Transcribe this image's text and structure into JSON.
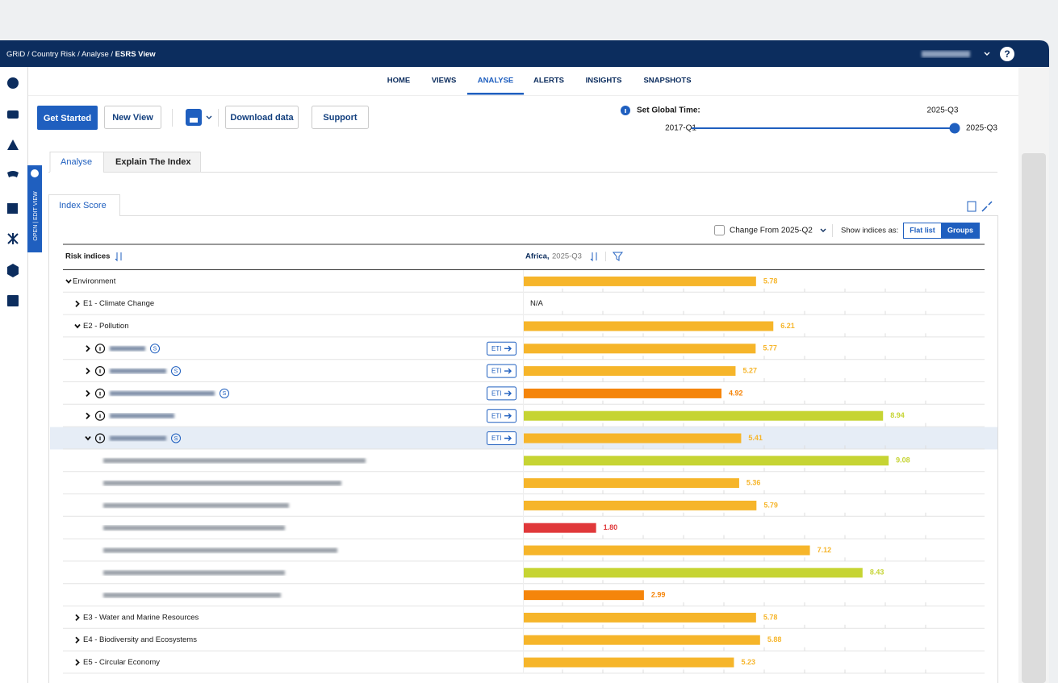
{
  "header": {
    "breadcrumb": [
      "GRiD",
      "Country Risk",
      "Analyse"
    ],
    "separator": "/",
    "current": "ESRS View",
    "help": "?"
  },
  "nav": [
    "HOME",
    "VIEWS",
    "ANALYSE",
    "ALERTS",
    "INSIGHTS",
    "SNAPSHOTS"
  ],
  "nav_active": 2,
  "toolbar": {
    "get_started": "Get Started",
    "new_view": "New View",
    "download": "Download data",
    "support": "Support"
  },
  "time": {
    "label": "Set Global Time:",
    "selected": "2025-Q3",
    "start": "2017-Q1",
    "end": "2025-Q3"
  },
  "tabs": [
    "Analyse",
    "Explain The Index"
  ],
  "side_tab": "OPEN | EDIT VIEW",
  "panel": {
    "tab": "Index Score",
    "change_label": "Change From 2025-Q2",
    "show_as_label": "Show indices as:",
    "toggle": [
      "Flat list",
      "Groups"
    ]
  },
  "table": {
    "header": {
      "name": "Risk indices",
      "region": "Africa,",
      "period": "2025-Q3"
    },
    "rows": [
      {
        "level": 0,
        "expand": "down",
        "label": "Environment",
        "score": 5.78,
        "color": "#f6b52a"
      },
      {
        "level": 1,
        "expand": "right",
        "label": "E1 - Climate Change",
        "score_text": "N/A"
      },
      {
        "level": 1,
        "expand": "down",
        "label": "E2 - Pollution",
        "score": 6.21,
        "color": "#f6b52a"
      },
      {
        "level": 2,
        "expand": "right",
        "badge": "S",
        "button": "ETI",
        "score": 5.77,
        "color": "#f6b52a"
      },
      {
        "level": 2,
        "expand": "right",
        "badge": "S",
        "button": "ETI",
        "score": 5.27,
        "color": "#f6b52a"
      },
      {
        "level": 2,
        "expand": "right",
        "badge": "S",
        "button": "ETI",
        "score": 4.92,
        "color": "#f5850b"
      },
      {
        "level": 2,
        "expand": "right",
        "button": "ETI",
        "score": 8.94,
        "color": "#c6d433"
      },
      {
        "level": 2,
        "expand": "down",
        "badge": "S",
        "button": "ETI",
        "score": 5.41,
        "color": "#f6b52a",
        "selected": true
      },
      {
        "level": 3,
        "score": 9.08,
        "color": "#c6d433"
      },
      {
        "level": 3,
        "score": 5.36,
        "color": "#f6b52a"
      },
      {
        "level": 3,
        "score": 5.79,
        "color": "#f6b52a"
      },
      {
        "level": 3,
        "score": 1.8,
        "score_label": "1.80",
        "color": "#e0383a"
      },
      {
        "level": 3,
        "score": 7.12,
        "color": "#f6b52a"
      },
      {
        "level": 3,
        "score": 8.43,
        "color": "#c6d433"
      },
      {
        "level": 3,
        "score": 2.99,
        "color": "#f5850b"
      },
      {
        "level": 1,
        "expand": "right",
        "label": "E3 - Water and Marine Resources",
        "score": 5.78,
        "color": "#f6b52a"
      },
      {
        "level": 1,
        "expand": "right",
        "label": "E4 - Biodiversity and Ecosystems",
        "score": 5.88,
        "color": "#f6b52a"
      },
      {
        "level": 1,
        "expand": "right",
        "label": "E5 - Circular Economy",
        "score": 5.23,
        "color": "#f6b52a"
      }
    ]
  }
}
